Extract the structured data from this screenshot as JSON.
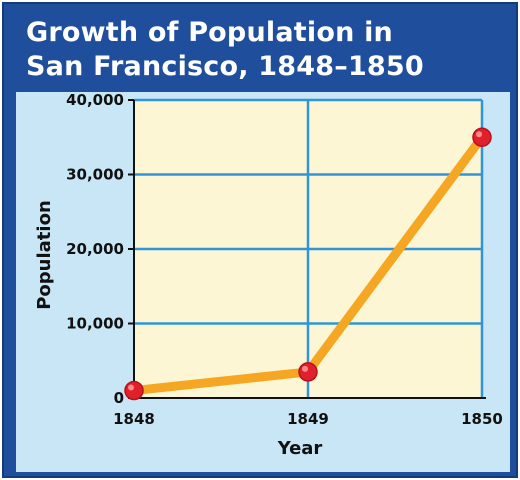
{
  "chart_data": {
    "type": "line",
    "title": "Growth of Population in\nSan Francisco, 1848–1850",
    "xlabel": "Year",
    "ylabel": "Population",
    "categories": [
      "1848",
      "1849",
      "1850"
    ],
    "series": [
      {
        "values": [
          1000,
          3500,
          35000
        ],
        "color": "#f5a623",
        "marker_color": "#e0202a"
      }
    ],
    "yticks": [
      0,
      10000,
      20000,
      30000,
      40000
    ],
    "ytick_labels": [
      "0",
      "10,000",
      "20,000",
      "30,000",
      "40,000"
    ],
    "ylim": [
      0,
      40000
    ],
    "grid": true,
    "colors": {
      "frame": "#1f4f9c",
      "panel": "#c9e6f6",
      "plot_background": "#fdf6d5",
      "grid": "#2f95d8",
      "axis": "#111111"
    }
  }
}
